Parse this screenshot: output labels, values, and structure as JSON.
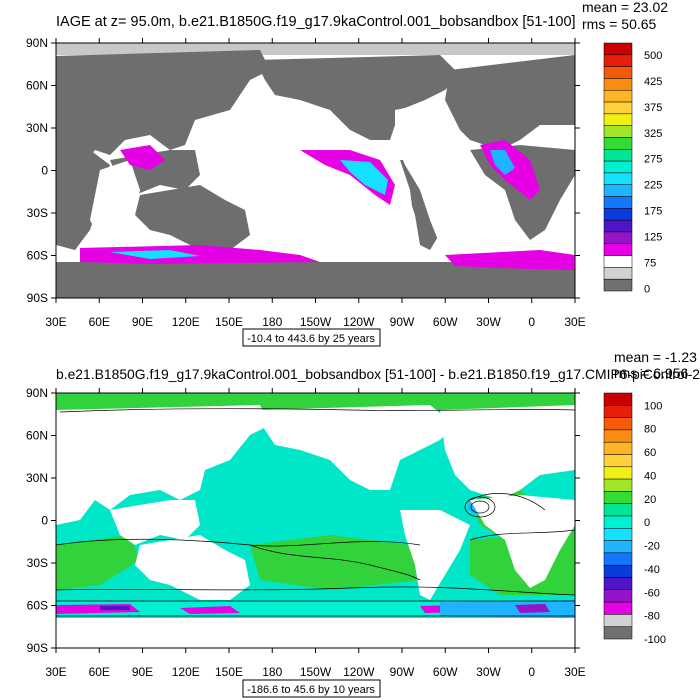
{
  "panels": [
    {
      "title": "IAGE at z=  95.0m, b.e21.B1850G.f19_g17.9kaControl.001_bobsandbox [51-100]",
      "stats": {
        "mean": "mean = 23.02",
        "rms": "rms = 50.65"
      },
      "lat_ticks": [
        "90N",
        "60N",
        "30N",
        "0",
        "30S",
        "60S",
        "90S"
      ],
      "lon_ticks": [
        "30E",
        "60E",
        "90E",
        "120E",
        "150E",
        "180",
        "150W",
        "120W",
        "90W",
        "60W",
        "30W",
        "0",
        "30E"
      ],
      "range_note": "-10.4 to 443.6 by 25 years",
      "colorbar": {
        "labels": [
          "500",
          "425",
          "375",
          "325",
          "275",
          "225",
          "175",
          "125",
          "75",
          "0"
        ],
        "colors": [
          "#c80000",
          "#e61e0a",
          "#f55a0a",
          "#fa8c14",
          "#ffb428",
          "#ffd23c",
          "#f0f014",
          "#a0e628",
          "#32dc32",
          "#00e696",
          "#00f0d2",
          "#14e1ff",
          "#1eb4ff",
          "#1478ff",
          "#0a3cdc",
          "#5014c8",
          "#9614c8",
          "#e600e6",
          "#ffffff",
          "#d2d2d2",
          "#707070"
        ]
      },
      "colors": {
        "land": "#6e6e6e",
        "ocean": "#ffffff",
        "sea_ice": "#c8c8c8"
      }
    },
    {
      "title": "b.e21.B1850G.f19_g17.9kaControl.001_bobsandbox [51-100] - b.e21.B1850.f19_g17.CMIP6-piControl-2",
      "stats": {
        "mean": "mean = -1.23",
        "rms": "rms = 6.956"
      },
      "lat_ticks": [
        "90N",
        "60N",
        "30N",
        "0",
        "30S",
        "60S",
        "90S"
      ],
      "lon_ticks": [
        "30E",
        "60E",
        "90E",
        "120E",
        "150E",
        "180",
        "150W",
        "120W",
        "90W",
        "60W",
        "30W",
        "0",
        "30E"
      ],
      "range_note": "-186.6 to 45.6 by 10 years",
      "colorbar": {
        "labels": [
          "100",
          "80",
          "60",
          "40",
          "20",
          "0",
          "-20",
          "-40",
          "-60",
          "-80",
          "-100"
        ],
        "colors": [
          "#c80000",
          "#e61e0a",
          "#f55a0a",
          "#fa8c14",
          "#ffb428",
          "#ffd23c",
          "#f0f014",
          "#a0e628",
          "#32dc32",
          "#00e696",
          "#00f0d2",
          "#14e1ff",
          "#1eb4ff",
          "#1478ff",
          "#0a3cdc",
          "#5014c8",
          "#9614c8",
          "#e600e6",
          "#d2d2d2",
          "#707070"
        ]
      },
      "colors": {
        "land": "#ffffff",
        "ocean_main": "#00e6c8",
        "ocean_alt": "#32d23c"
      }
    }
  ]
}
